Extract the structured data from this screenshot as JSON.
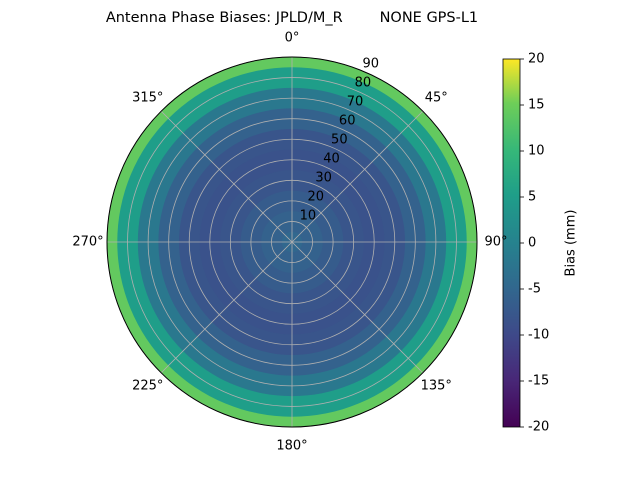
{
  "chart_data": {
    "type": "polar-heatmap",
    "title": "Antenna Phase Biases: JPLD/M_R        NONE GPS-L1",
    "colormap": "viridis",
    "zenith": [
      0,
      10,
      20,
      30,
      40,
      50,
      60,
      70,
      80,
      90
    ],
    "values": [
      -5,
      -6,
      -7,
      -8,
      -8.5,
      -8,
      -6,
      -2,
      5,
      14
    ],
    "rlim": [
      0,
      90
    ],
    "rticks": [
      10,
      20,
      30,
      40,
      50,
      60,
      70,
      80,
      90
    ],
    "thetaticks": [
      {
        "value": 0,
        "label": "0°"
      },
      {
        "value": 45,
        "label": "45°"
      },
      {
        "value": 90,
        "label": "90°"
      },
      {
        "value": 135,
        "label": "135°"
      },
      {
        "value": 180,
        "label": "180°"
      },
      {
        "value": 225,
        "label": "225°"
      },
      {
        "value": 270,
        "label": "270°"
      },
      {
        "value": 315,
        "label": "315°"
      }
    ],
    "grid": true,
    "colorbar": {
      "label": "Bias (mm)",
      "lim": [
        -20,
        20
      ],
      "ticks": [
        -20,
        -15,
        -10,
        -5,
        0,
        5,
        10,
        15,
        20
      ]
    }
  }
}
